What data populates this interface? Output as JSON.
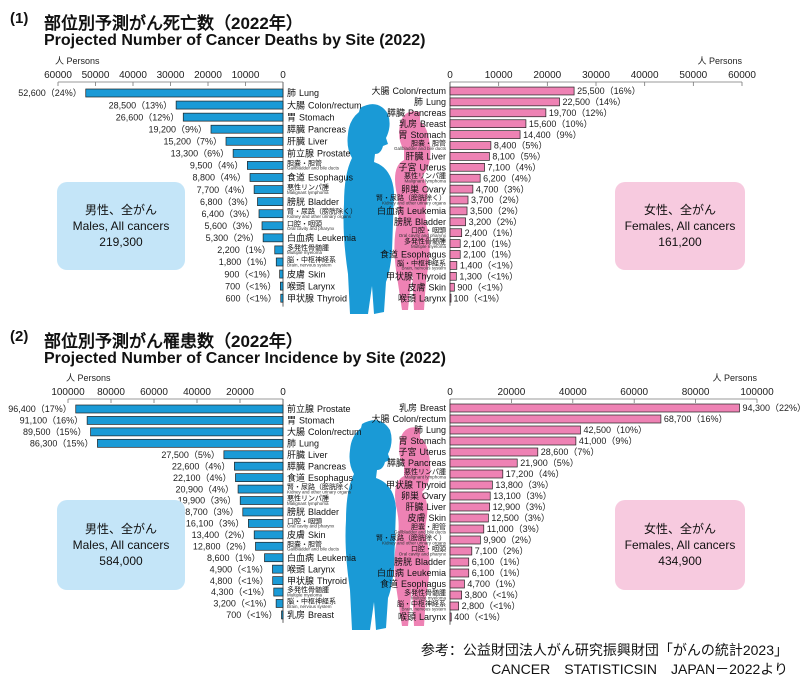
{
  "sections": [
    {
      "number": "(1)",
      "title_ja": "部位別予測がん死亡数（2022年）",
      "title_en": "Projected Number of Cancer Deaths by Site (2022)",
      "male_box": {
        "ja": "男性、全がん",
        "en": "Males, All cancers",
        "total": "219,300"
      },
      "female_box": {
        "ja": "女性、全がん",
        "en": "Females, All cancers",
        "total": "161,200"
      }
    },
    {
      "number": "(2)",
      "title_ja": "部位別予測がん罹患数（2022年）",
      "title_en": "Projected Number of Cancer Incidence by Site (2022)",
      "male_box": {
        "ja": "男性、全がん",
        "en": "Males, All cancers",
        "total": "584,000"
      },
      "female_box": {
        "ja": "女性、全がん",
        "en": "Females, All cancers",
        "total": "434,900"
      }
    }
  ],
  "footer": {
    "line1": "参考：公益財団法人がん研究振興財団「がんの統計2023」",
    "line2": "CANCER　STATISTICSIN　JAPAN－2022より"
  },
  "colors": {
    "male": "#1a9ad6",
    "female": "#ee82b4",
    "male_box": "#c4e5f8",
    "female_box": "#f7cadf"
  },
  "chart_data": [
    {
      "type": "bar",
      "title": "Projected Number of Cancer Deaths by Site (2022) - Males",
      "xlabel": "人 Persons",
      "xlim": [
        0,
        60000
      ],
      "ticks": [
        "60000",
        "50000",
        "40000",
        "30000",
        "20000",
        "10000",
        "0"
      ],
      "tick_values": [
        60000,
        50000,
        40000,
        30000,
        20000,
        10000,
        0
      ],
      "rows": [
        {
          "ja": "肺",
          "en": "Lung",
          "v": 52600,
          "label": "52,600（24%）"
        },
        {
          "ja": "大腸",
          "en": "Colon/rectum",
          "v": 28500,
          "label": "28,500（13%）"
        },
        {
          "ja": "胃",
          "en": "Stomach",
          "v": 26600,
          "label": "26,600（12%）"
        },
        {
          "ja": "膵臓",
          "en": "Pancreas",
          "v": 19200,
          "label": "19,200（9%）"
        },
        {
          "ja": "肝臓",
          "en": "Liver",
          "v": 15200,
          "label": "15,200（7%）"
        },
        {
          "ja": "前立腺",
          "en": "Prostate",
          "v": 13300,
          "label": "13,300（6%）"
        },
        {
          "ja": "胆嚢・胆管",
          "sub": "Gallbladder and bile ducts",
          "v": 9500,
          "label": "9,500（4%）"
        },
        {
          "ja": "食道",
          "en": "Esophagus",
          "v": 8800,
          "label": "8,800（4%）"
        },
        {
          "ja": "悪性リンパ腫",
          "sub": "Malignant lymphoma",
          "v": 7700,
          "label": "7,700（4%）"
        },
        {
          "ja": "膀胱",
          "en": "Bladder",
          "v": 6800,
          "label": "6,800（3%）"
        },
        {
          "ja": "腎・尿路（膀胱除く）",
          "sub": "Kidney and other urinary organs",
          "v": 6400,
          "label": "6,400（3%）"
        },
        {
          "ja": "口腔・咽頭",
          "sub": "Oral cavity and pharynx",
          "v": 5600,
          "label": "5,600（3%）"
        },
        {
          "ja": "白血病",
          "en": "Leukemia",
          "v": 5300,
          "label": "5,300（2%）"
        },
        {
          "ja": "多発性骨髄腫",
          "sub": "Multiple myeloma",
          "v": 2200,
          "label": "2,200（1%）"
        },
        {
          "ja": "脳・中枢神経系",
          "sub": "Brain, nervous system",
          "v": 1800,
          "label": "1,800（1%）"
        },
        {
          "ja": "皮膚",
          "en": "Skin",
          "v": 900,
          "label": "900（<1%）"
        },
        {
          "ja": "喉頭",
          "en": "Larynx",
          "v": 700,
          "label": "700（<1%）"
        },
        {
          "ja": "甲状腺",
          "en": "Thyroid",
          "v": 600,
          "label": "600（<1%）"
        }
      ]
    },
    {
      "type": "bar",
      "title": "Projected Number of Cancer Deaths by Site (2022) - Females",
      "xlabel": "人 Persons",
      "xlim": [
        0,
        60000
      ],
      "ticks": [
        "0",
        "10000",
        "20000",
        "30000",
        "40000",
        "50000",
        "60000"
      ],
      "tick_values": [
        0,
        10000,
        20000,
        30000,
        40000,
        50000,
        60000
      ],
      "rows": [
        {
          "ja": "大腸",
          "en": "Colon/rectum",
          "v": 25500,
          "label": "25,500（16%）"
        },
        {
          "ja": "肺",
          "en": "Lung",
          "v": 22500,
          "label": "22,500（14%）"
        },
        {
          "ja": "膵臓",
          "en": "Pancreas",
          "v": 19700,
          "label": "19,700（12%）"
        },
        {
          "ja": "乳房",
          "en": "Breast",
          "v": 15600,
          "label": "15,600（10%）"
        },
        {
          "ja": "胃",
          "en": "Stomach",
          "v": 14400,
          "label": "14,400（9%）"
        },
        {
          "ja": "胆嚢・胆管",
          "sub": "Gallbladder and bile ducts",
          "v": 8400,
          "label": "8,400（5%）"
        },
        {
          "ja": "肝臓",
          "en": "Liver",
          "v": 8100,
          "label": "8,100（5%）"
        },
        {
          "ja": "子宮",
          "en": "Uterus",
          "v": 7100,
          "label": "7,100（4%）"
        },
        {
          "ja": "悪性リンパ腫",
          "sub": "Malignant lymphoma",
          "v": 6200,
          "label": "6,200（4%）"
        },
        {
          "ja": "卵巣",
          "en": "Ovary",
          "v": 4700,
          "label": "4,700（3%）"
        },
        {
          "ja": "腎・尿路（膀胱除く）",
          "sub": "Kidney and other urinary organs",
          "v": 3700,
          "label": "3,700（2%）"
        },
        {
          "ja": "白血病",
          "en": "Leukemia",
          "v": 3500,
          "label": "3,500（2%）"
        },
        {
          "ja": "膀胱",
          "en": "Bladder",
          "v": 3200,
          "label": "3,200（2%）"
        },
        {
          "ja": "口腔・咽頭",
          "sub": "Oral cavity and pharynx",
          "v": 2400,
          "label": "2,400（1%）"
        },
        {
          "ja": "多発性骨髄腫",
          "sub": "Multiple myeloma",
          "v": 2100,
          "label": "2,100（1%）"
        },
        {
          "ja": "食道",
          "en": "Esophagus",
          "v": 2100,
          "label": "2,100（1%）"
        },
        {
          "ja": "脳・中枢神経系",
          "sub": "Brain, nervous system",
          "v": 1400,
          "label": "1,400（<1%）"
        },
        {
          "ja": "甲状腺",
          "en": "Thyroid",
          "v": 1300,
          "label": "1,300（<1%）"
        },
        {
          "ja": "皮膚",
          "en": "Skin",
          "v": 900,
          "label": "900（<1%）"
        },
        {
          "ja": "喉頭",
          "en": "Larynx",
          "v": 100,
          "label": "100（<1%）"
        }
      ]
    },
    {
      "type": "bar",
      "title": "Projected Number of Cancer Incidence by Site (2022) - Males",
      "xlabel": "人 Persons",
      "xlim": [
        0,
        100000
      ],
      "ticks": [
        "100000",
        "80000",
        "60000",
        "40000",
        "20000",
        "0"
      ],
      "tick_values": [
        100000,
        80000,
        60000,
        40000,
        20000,
        0
      ],
      "rows": [
        {
          "ja": "前立腺",
          "en": "Prostate",
          "v": 96400,
          "label": "96,400（17%）"
        },
        {
          "ja": "胃",
          "en": "Stomach",
          "v": 91100,
          "label": "91,100（16%）"
        },
        {
          "ja": "大腸",
          "en": "Colon/rectum",
          "v": 89500,
          "label": "89,500（15%）"
        },
        {
          "ja": "肺",
          "en": "Lung",
          "v": 86300,
          "label": "86,300（15%）"
        },
        {
          "ja": "肝臓",
          "en": "Liver",
          "v": 27500,
          "label": "27,500（5%）"
        },
        {
          "ja": "膵臓",
          "en": "Pancreas",
          "v": 22600,
          "label": "22,600（4%）"
        },
        {
          "ja": "食道",
          "en": "Esophagus",
          "v": 22100,
          "label": "22,100（4%）"
        },
        {
          "ja": "腎・尿路（膀胱除く）",
          "sub": "Kidney and other urinary organs",
          "v": 20900,
          "label": "20,900（4%）"
        },
        {
          "ja": "悪性リンパ腫",
          "sub": "Malignant lymphoma",
          "v": 19900,
          "label": "19,900（3%）"
        },
        {
          "ja": "膀胱",
          "en": "Bladder",
          "v": 18700,
          "label": "18,700（3%）"
        },
        {
          "ja": "口腔・咽頭",
          "sub": "Oral cavity and pharynx",
          "v": 16100,
          "label": "16,100（3%）"
        },
        {
          "ja": "皮膚",
          "en": "Skin",
          "v": 13400,
          "label": "13,400（2%）"
        },
        {
          "ja": "胆嚢・胆管",
          "sub": "Gallbladder and bile ducts",
          "v": 12800,
          "label": "12,800（2%）"
        },
        {
          "ja": "白血病",
          "en": "Leukemia",
          "v": 8600,
          "label": "8,600（1%）"
        },
        {
          "ja": "喉頭",
          "en": "Larynx",
          "v": 4900,
          "label": "4,900（<1%）"
        },
        {
          "ja": "甲状腺",
          "en": "Thyroid",
          "v": 4800,
          "label": "4,800（<1%）"
        },
        {
          "ja": "多発性骨髄腫",
          "sub": "Multiple myeloma",
          "v": 4300,
          "label": "4,300（<1%）"
        },
        {
          "ja": "脳・中枢神経系",
          "sub": "Brain, nervous system",
          "v": 3200,
          "label": "3,200（<1%）"
        },
        {
          "ja": "乳房",
          "en": "Breast",
          "v": 700,
          "label": "700（<1%）"
        }
      ]
    },
    {
      "type": "bar",
      "title": "Projected Number of Cancer Incidence by Site (2022) - Females",
      "xlabel": "人 Persons",
      "xlim": [
        0,
        100000
      ],
      "ticks": [
        "0",
        "20000",
        "40000",
        "60000",
        "80000",
        "100000"
      ],
      "tick_values": [
        0,
        20000,
        40000,
        60000,
        80000,
        100000
      ],
      "rows": [
        {
          "ja": "乳房",
          "en": "Breast",
          "v": 94300,
          "label": "94,300（22%）"
        },
        {
          "ja": "大腸",
          "en": "Colon/rectum",
          "v": 68700,
          "label": "68,700（16%）"
        },
        {
          "ja": "肺",
          "en": "Lung",
          "v": 42500,
          "label": "42,500（10%）"
        },
        {
          "ja": "胃",
          "en": "Stomach",
          "v": 41000,
          "label": "41,000（9%）"
        },
        {
          "ja": "子宮",
          "en": "Uterus",
          "v": 28600,
          "label": "28,600（7%）"
        },
        {
          "ja": "膵臓",
          "en": "Pancreas",
          "v": 21900,
          "label": "21,900（5%）"
        },
        {
          "ja": "悪性リンパ腫",
          "sub": "Malignant lymphoma",
          "v": 17200,
          "label": "17,200（4%）"
        },
        {
          "ja": "甲状腺",
          "en": "Thyroid",
          "v": 13800,
          "label": "13,800（3%）"
        },
        {
          "ja": "卵巣",
          "en": "Ovary",
          "v": 13100,
          "label": "13,100（3%）"
        },
        {
          "ja": "肝臓",
          "en": "Liver",
          "v": 12900,
          "label": "12,900（3%）"
        },
        {
          "ja": "皮膚",
          "en": "Skin",
          "v": 12500,
          "label": "12,500（3%）"
        },
        {
          "ja": "胆嚢・胆管",
          "sub": "Gallbladder and bile ducts",
          "v": 11000,
          "label": "11,000（3%）"
        },
        {
          "ja": "腎・尿路（膀胱除く）",
          "sub": "Kidney and other urinary organs",
          "v": 9900,
          "label": "9,900（2%）"
        },
        {
          "ja": "口腔・咽頭",
          "sub": "Oral cavity and pharynx",
          "v": 7100,
          "label": "7,100（2%）"
        },
        {
          "ja": "膀胱",
          "en": "Bladder",
          "v": 6100,
          "label": "6,100（1%）"
        },
        {
          "ja": "白血病",
          "en": "Leukemia",
          "v": 6100,
          "label": "6,100（1%）"
        },
        {
          "ja": "食道",
          "en": "Esophagus",
          "v": 4700,
          "label": "4,700（1%）"
        },
        {
          "ja": "多発性骨髄腫",
          "sub": "Multiple myeloma",
          "v": 3800,
          "label": "3,800（<1%）"
        },
        {
          "ja": "脳・中枢神経系",
          "sub": "Brain, nervous system",
          "v": 2800,
          "label": "2,800（<1%）"
        },
        {
          "ja": "喉頭",
          "en": "Larynx",
          "v": 400,
          "label": "400（<1%）"
        }
      ]
    }
  ]
}
